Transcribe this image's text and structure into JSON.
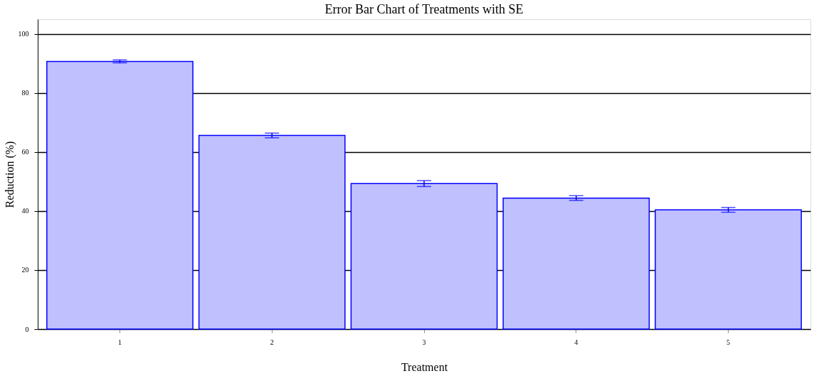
{
  "chart_data": {
    "type": "bar",
    "title": "Error Bar Chart of Treatments with SE",
    "xlabel": "Treatment",
    "ylabel": "Reduction (%)",
    "categories": [
      "1",
      "2",
      "3",
      "4",
      "5"
    ],
    "series": [
      {
        "color": "#c0c0ff",
        "values": [
          90.7,
          65.6,
          49.3,
          44.4,
          40.4
        ],
        "errors": [
          0.5,
          0.8,
          1.0,
          0.8,
          0.8
        ]
      }
    ],
    "ylim": [
      0,
      105
    ],
    "yticks": [
      0,
      20,
      40,
      60,
      80,
      100
    ],
    "grid": "y"
  }
}
